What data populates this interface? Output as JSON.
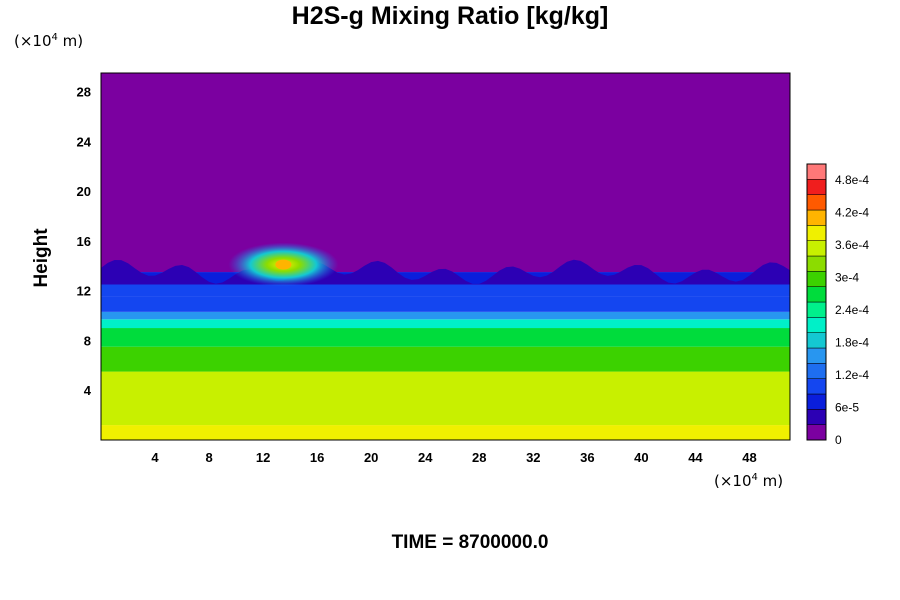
{
  "chart_data": {
    "type": "heatmap",
    "title": "H2S-g Mixing Ratio [kg/kg]",
    "ylabel": "Height",
    "xlabel": "",
    "x_unit": "10^4 m",
    "y_unit": "10^4 m",
    "x_unit_label": {
      "prefix": "(×10",
      "exp": "4",
      "suffix": " m)"
    },
    "y_unit_label": {
      "prefix": "(×10",
      "exp": "4",
      "suffix": " m)"
    },
    "xlim": [
      0,
      51
    ],
    "ylim": [
      0,
      29.5
    ],
    "x_ticks": [
      4,
      8,
      12,
      16,
      20,
      24,
      28,
      32,
      36,
      40,
      44,
      48
    ],
    "y_ticks": [
      4,
      8,
      12,
      16,
      20,
      24,
      28
    ],
    "colorbar": {
      "range": [
        0,
        0.00051
      ],
      "tick_values": [
        0,
        6e-05,
        0.00012,
        0.00018,
        0.00024,
        0.0003,
        0.00036,
        0.00042,
        0.00048
      ],
      "tick_labels": [
        "0",
        "6e-5",
        "1.2e-4",
        "1.8e-4",
        "2.4e-4",
        "3e-4",
        "3.6e-4",
        "4.2e-4",
        "4.8e-4"
      ],
      "colors": [
        "#7b00a0",
        "#2c00b4",
        "#0a1edc",
        "#1446f0",
        "#1e6ef0",
        "#2896f0",
        "#14c8d2",
        "#00f0c8",
        "#00f08c",
        "#00dc3c",
        "#3cd200",
        "#8cdc00",
        "#c8f000",
        "#f0f000",
        "#ffb400",
        "#ff5a00",
        "#f01e1e",
        "#ff7878"
      ]
    },
    "layers": [
      {
        "y_from": 0,
        "y_to": 1.2,
        "value": 0.00037
      },
      {
        "y_from": 1.2,
        "y_to": 5.5,
        "value": 0.00034
      },
      {
        "y_from": 5.5,
        "y_to": 7.5,
        "value": 0.00031
      },
      {
        "y_from": 7.5,
        "y_to": 9.0,
        "value": 0.00027
      },
      {
        "y_from": 9.0,
        "y_to": 9.7,
        "value": 0.00021
      },
      {
        "y_from": 9.7,
        "y_to": 10.3,
        "value": 0.00015
      },
      {
        "y_from": 10.3,
        "y_to": 11.5,
        "value": 0.00011
      },
      {
        "y_from": 11.5,
        "y_to": 12.5,
        "value": 9e-05
      },
      {
        "y_from": 12.5,
        "y_to": 13.5,
        "value": 6e-05
      },
      {
        "y_from": 13.5,
        "y_to": 29.5,
        "value": 0
      }
    ],
    "plume_max": {
      "x": 13.5,
      "y": 14.1,
      "value": 0.00038
    },
    "time_label": "TIME = 8700000.0"
  }
}
